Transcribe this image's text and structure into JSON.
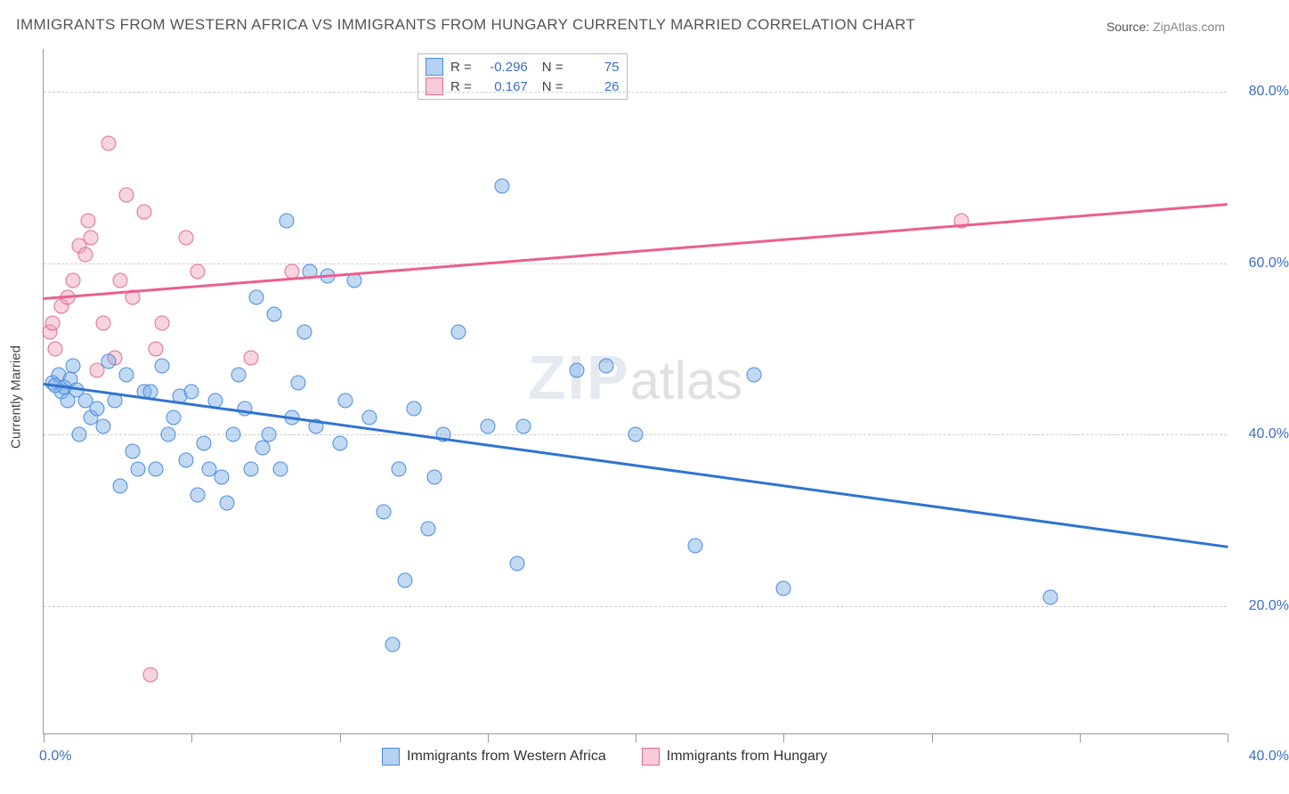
{
  "title": "IMMIGRANTS FROM WESTERN AFRICA VS IMMIGRANTS FROM HUNGARY CURRENTLY MARRIED CORRELATION CHART",
  "source_label": "Source:",
  "source_name": "ZipAtlas.com",
  "ylabel": "Currently Married",
  "watermark_a": "ZIP",
  "watermark_b": "atlas",
  "chart": {
    "type": "scatter",
    "background_color": "#ffffff",
    "axis_color": "#999999",
    "grid_color": "#cccccc",
    "grid_dash": true,
    "xlim": [
      0,
      40
    ],
    "ylim": [
      5,
      85
    ],
    "x_ticks": [
      0,
      5,
      10,
      15,
      20,
      25,
      30,
      35,
      40
    ],
    "x_tick_labels_shown": {
      "0": "0.0%",
      "40": "40.0%"
    },
    "y_gridlines": [
      20,
      40,
      60,
      80
    ],
    "y_tick_labels": {
      "20": "20.0%",
      "40": "40.0%",
      "60": "60.0%",
      "80": "80.0%"
    },
    "y_tick_label_side": "right",
    "tick_label_color": "#3b6fc9",
    "tick_label_fontsize": 16,
    "series": {
      "western_africa": {
        "label": "Immigrants from Western Africa",
        "fill_color": "rgba(120,170,230,0.45)",
        "stroke_color": "#4b8de0",
        "marker_size": 17,
        "R": "-0.296",
        "N": "75",
        "trend": {
          "y_at_x0": 46,
          "y_at_x40": 27,
          "color": "#2f74d0",
          "width": 2.5
        },
        "points": [
          [
            0.3,
            46
          ],
          [
            0.5,
            47
          ],
          [
            0.6,
            45
          ],
          [
            0.8,
            44
          ],
          [
            0.7,
            45.5
          ],
          [
            1.0,
            48
          ],
          [
            1.2,
            40
          ],
          [
            1.4,
            44
          ],
          [
            1.6,
            42
          ],
          [
            1.8,
            43
          ],
          [
            2.0,
            41
          ],
          [
            2.2,
            48.5
          ],
          [
            2.4,
            44
          ],
          [
            2.6,
            34
          ],
          [
            2.8,
            47
          ],
          [
            3.0,
            38
          ],
          [
            3.2,
            36
          ],
          [
            3.4,
            45
          ],
          [
            3.6,
            45
          ],
          [
            3.8,
            36
          ],
          [
            4.0,
            48
          ],
          [
            4.2,
            40
          ],
          [
            4.4,
            42
          ],
          [
            4.6,
            44.5
          ],
          [
            4.8,
            37
          ],
          [
            5.0,
            45
          ],
          [
            5.2,
            33
          ],
          [
            5.4,
            39
          ],
          [
            5.6,
            36
          ],
          [
            5.8,
            44
          ],
          [
            6.0,
            35
          ],
          [
            6.2,
            32
          ],
          [
            6.4,
            40
          ],
          [
            6.6,
            47
          ],
          [
            6.8,
            43
          ],
          [
            7.0,
            36
          ],
          [
            7.2,
            56
          ],
          [
            7.4,
            38.5
          ],
          [
            7.6,
            40
          ],
          [
            7.8,
            54
          ],
          [
            8.0,
            36
          ],
          [
            8.2,
            65
          ],
          [
            8.4,
            42
          ],
          [
            8.6,
            46
          ],
          [
            8.8,
            52
          ],
          [
            9.0,
            59
          ],
          [
            9.2,
            41
          ],
          [
            9.6,
            58.5
          ],
          [
            10.0,
            39
          ],
          [
            10.2,
            44
          ],
          [
            10.5,
            58
          ],
          [
            11.0,
            42
          ],
          [
            11.5,
            31
          ],
          [
            11.8,
            15.5
          ],
          [
            12.0,
            36
          ],
          [
            12.2,
            23
          ],
          [
            12.5,
            43
          ],
          [
            13.0,
            29
          ],
          [
            13.2,
            35
          ],
          [
            13.5,
            40
          ],
          [
            14.0,
            52
          ],
          [
            15.0,
            41
          ],
          [
            15.5,
            69
          ],
          [
            16.0,
            25
          ],
          [
            16.2,
            41
          ],
          [
            18.0,
            47.5
          ],
          [
            19.0,
            48
          ],
          [
            20.0,
            40
          ],
          [
            22.0,
            27
          ],
          [
            24.0,
            47
          ],
          [
            25.0,
            22
          ],
          [
            34.0,
            21
          ],
          [
            0.4,
            45.7
          ],
          [
            0.9,
            46.5
          ],
          [
            1.1,
            45.2
          ]
        ]
      },
      "hungary": {
        "label": "Immigrants from Hungary",
        "fill_color": "rgba(240,160,185,0.45)",
        "stroke_color": "#e56b94",
        "marker_size": 17,
        "R": "0.167",
        "N": "26",
        "trend": {
          "y_at_x0": 56,
          "y_at_x40": 67,
          "color": "#ea5f8f",
          "width": 2.5
        },
        "points": [
          [
            0.2,
            52
          ],
          [
            0.3,
            53
          ],
          [
            0.4,
            50
          ],
          [
            0.6,
            55
          ],
          [
            0.8,
            56
          ],
          [
            1.0,
            58
          ],
          [
            1.2,
            62
          ],
          [
            1.4,
            61
          ],
          [
            1.5,
            65
          ],
          [
            1.6,
            63
          ],
          [
            1.8,
            47.5
          ],
          [
            2.0,
            53
          ],
          [
            2.2,
            74
          ],
          [
            2.4,
            49
          ],
          [
            2.6,
            58
          ],
          [
            2.8,
            68
          ],
          [
            3.0,
            56
          ],
          [
            3.4,
            66
          ],
          [
            3.6,
            12
          ],
          [
            3.8,
            50
          ],
          [
            4.0,
            53
          ],
          [
            4.8,
            63
          ],
          [
            5.2,
            59
          ],
          [
            7.0,
            49
          ],
          [
            8.4,
            59
          ],
          [
            31.0,
            65
          ]
        ]
      }
    }
  },
  "legend_top": {
    "R_label": "R =",
    "N_label": "N ="
  }
}
